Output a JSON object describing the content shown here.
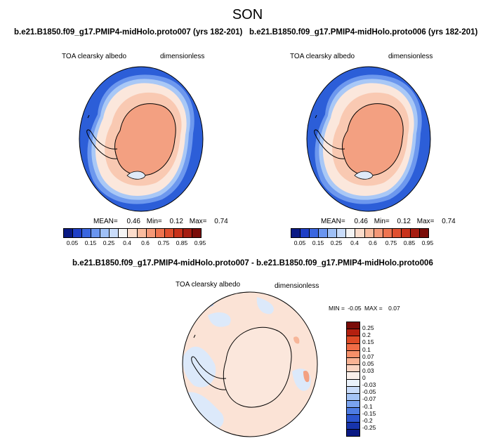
{
  "season": "SON",
  "panel_left": {
    "title": "b.e21.B1850.f09_g17.PMIP4-midHolo.proto007 (yrs 182-201)",
    "variable": "TOA clearsky albedo",
    "units": "dimensionless",
    "stats": {
      "mean_label": "MEAN=",
      "mean": "0.46",
      "min_label": "Min=",
      "min": "0.12",
      "max_label": "Max=",
      "max": "0.74"
    }
  },
  "panel_right": {
    "title": "b.e21.B1850.f09_g17.PMIP4-midHolo.proto006 (yrs 182-201)",
    "variable": "TOA clearsky albedo",
    "units": "dimensionless",
    "stats": {
      "mean_label": "MEAN=",
      "mean": "0.46",
      "min_label": "Min=",
      "min": "0.12",
      "max_label": "Max=",
      "max": "0.74"
    }
  },
  "colorbar_top": {
    "labels": [
      "0.05",
      "0.15",
      "0.25",
      "0.4",
      "0.6",
      "0.75",
      "0.85",
      "0.95"
    ],
    "colors": [
      "#0a1a84",
      "#1f3fc6",
      "#3a66e0",
      "#6a95ef",
      "#9fc0f6",
      "#c9dcfa",
      "#f4f4f4",
      "#fbdccb",
      "#f9bb9e",
      "#f49877",
      "#ee7450",
      "#e0502f",
      "#c8311a",
      "#a51c10",
      "#7a0c08"
    ]
  },
  "diff_panel": {
    "title": "b.e21.B1850.f09_g17.PMIP4-midHolo.proto007 - b.e21.B1850.f09_g17.PMIP4-midHolo.proto006",
    "variable": "TOA clearsky albedo",
    "units": "dimensionless",
    "min_label": "MIN =",
    "min": "-0.05",
    "max_label": "MAX =",
    "max": "0.07"
  },
  "colorbar_diff": {
    "labels": [
      "0.25",
      "0.2",
      "0.15",
      "0.1",
      "0.07",
      "0.05",
      "0.03",
      "0",
      "-0.03",
      "-0.05",
      "-0.07",
      "-0.1",
      "-0.15",
      "-0.2",
      "-0.25"
    ],
    "colors": [
      "#7a0c08",
      "#b4200f",
      "#de4a26",
      "#f06c46",
      "#f69069",
      "#f9b394",
      "#fbd5c2",
      "#faf0ea",
      "#eaf2fb",
      "#c9dcfa",
      "#a4c4f6",
      "#7aa3ef",
      "#4e7ce3",
      "#2c55cf",
      "#1734ac",
      "#0a1a84"
    ]
  },
  "icons": {
    "coastline": "antarctica-coastline-icon"
  }
}
